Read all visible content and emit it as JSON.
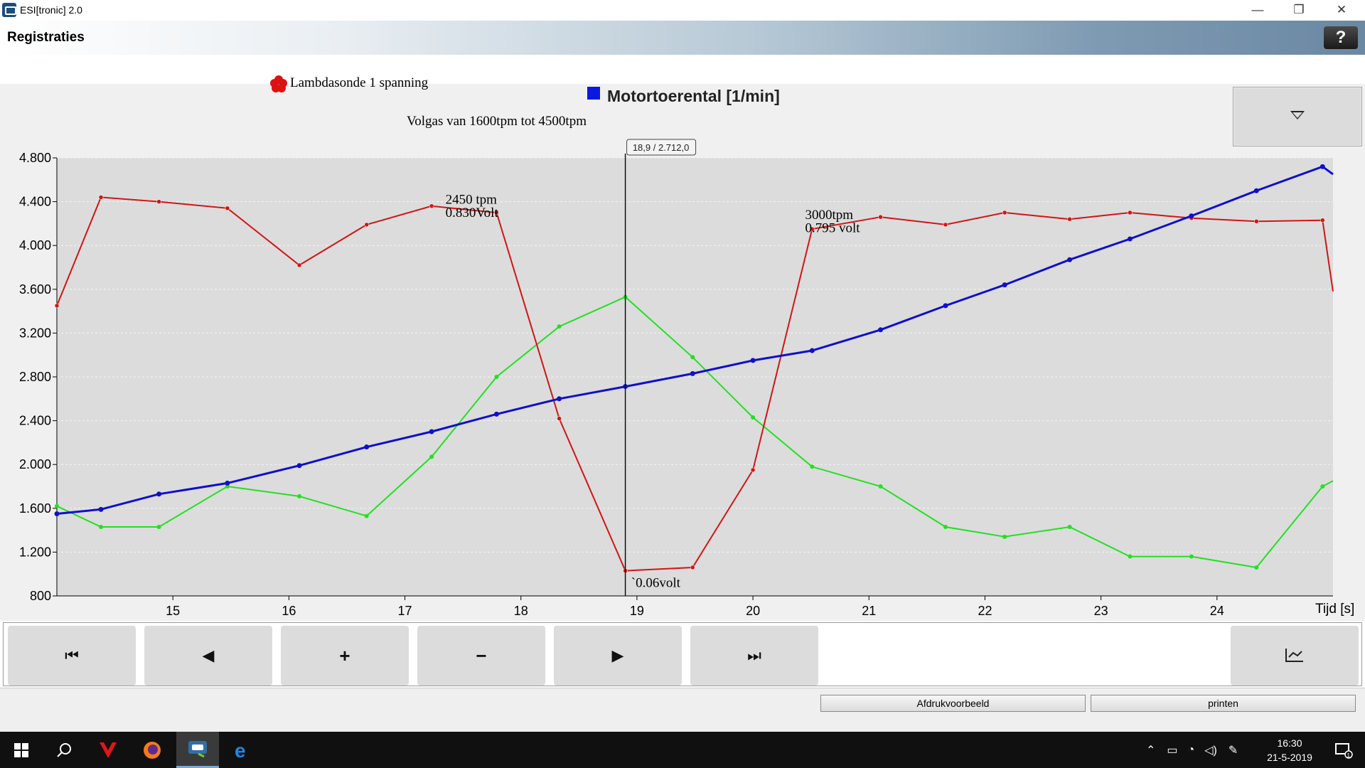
{
  "window": {
    "app_title": "ESI[tronic] 2.0",
    "minimize_glyph": "—",
    "restore_glyph": "❐",
    "close_glyph": "✕"
  },
  "header": {
    "title": "Registraties",
    "help_label": "?"
  },
  "legend": {
    "lambda_label": "Lambdasonde 1 spanning",
    "lambda_color": "#dd1111",
    "rpm_label": "Motortoerental [1/min]",
    "rpm_color": "#0b19e0"
  },
  "chart_data": {
    "type": "line",
    "title": "",
    "subtitle": "Volgas van 1600tpm tot 4500tpm",
    "xlabel": "Tijd [s]",
    "ylabel": "",
    "xlim": [
      14,
      25
    ],
    "ylim": [
      800,
      4800
    ],
    "x_ticks": [
      15,
      16,
      17,
      18,
      19,
      20,
      21,
      22,
      23,
      24
    ],
    "x_tick_labels": [
      "15",
      "16",
      "17",
      "18",
      "19",
      "20",
      "21",
      "22",
      "23",
      "24"
    ],
    "y_ticks": [
      800,
      1200,
      1600,
      2000,
      2400,
      2800,
      3200,
      3600,
      4000,
      4400,
      4800
    ],
    "y_tick_labels": [
      "800",
      "1.200",
      "1.600",
      "2.000",
      "2.400",
      "2.800",
      "3.200",
      "3.600",
      "4.000",
      "4.400",
      "4.800"
    ],
    "grid": true,
    "cursor": {
      "x": 18.9,
      "y": 2712.0,
      "label": "18,9 / 2.712,0"
    },
    "series": [
      {
        "name": "Motortoerental [1/min]",
        "color": "#1010c8",
        "x": [
          14.0,
          14.38,
          14.88,
          15.47,
          16.09,
          16.67,
          17.23,
          17.79,
          18.33,
          18.9,
          19.48,
          20.0,
          20.51,
          21.1,
          21.66,
          22.17,
          22.73,
          23.25,
          23.78,
          24.34,
          24.91,
          25.0
        ],
        "values": [
          1550,
          1590,
          1730,
          1830,
          1990,
          2160,
          2300,
          2460,
          2600,
          2712,
          2830,
          2950,
          3040,
          3230,
          3450,
          3640,
          3870,
          4060,
          4270,
          4500,
          4720,
          4650
        ]
      },
      {
        "name": "Lambdasonde 1 spanning",
        "color": "#d01515",
        "x": [
          14.0,
          14.38,
          14.88,
          15.47,
          16.09,
          16.67,
          17.23,
          17.79,
          18.33,
          18.9,
          19.48,
          20.0,
          20.51,
          21.1,
          21.66,
          22.17,
          22.73,
          23.25,
          23.78,
          24.34,
          24.91,
          25.0
        ],
        "values": [
          3450,
          4440,
          4400,
          4340,
          3820,
          4190,
          4360,
          4300,
          2420,
          1030,
          1060,
          1950,
          4150,
          4260,
          4190,
          4300,
          4240,
          4300,
          4250,
          4220,
          4230,
          3580
        ]
      },
      {
        "name": "",
        "color": "#22e022",
        "x": [
          14.0,
          14.38,
          14.88,
          15.47,
          16.09,
          16.67,
          17.23,
          17.79,
          18.33,
          18.9,
          19.48,
          20.0,
          20.51,
          21.1,
          21.66,
          22.17,
          22.73,
          23.25,
          23.78,
          24.34,
          24.91,
          25.0
        ],
        "values": [
          1620,
          1430,
          1430,
          1800,
          1710,
          1530,
          2070,
          2800,
          3260,
          3530,
          2980,
          2430,
          1980,
          1800,
          1430,
          1340,
          1430,
          1160,
          1160,
          1060,
          1800,
          1850
        ]
      }
    ],
    "annotations": [
      {
        "text": "2450 tpm",
        "x": 17.35,
        "y": 4380
      },
      {
        "text": "0.830Volt",
        "x": 17.35,
        "y": 4260
      },
      {
        "text": "3000tpm",
        "x": 20.45,
        "y": 4240
      },
      {
        "text": "0.795 volt",
        "x": 20.45,
        "y": 4120
      },
      {
        "text": "`0.06volt",
        "x": 18.95,
        "y": 880
      }
    ]
  },
  "nav": {
    "first": "⏮",
    "prev": "◀",
    "zoom_in": "+",
    "zoom_out": "−",
    "next": "▶",
    "last": "⏭",
    "export_icon": "chart-export-icon"
  },
  "footer": {
    "preview_label": "Afdrukvoorbeeld",
    "print_label": "printen"
  },
  "taskbar": {
    "time": "16:30",
    "date": "21-5-2019",
    "notifications": "1"
  }
}
